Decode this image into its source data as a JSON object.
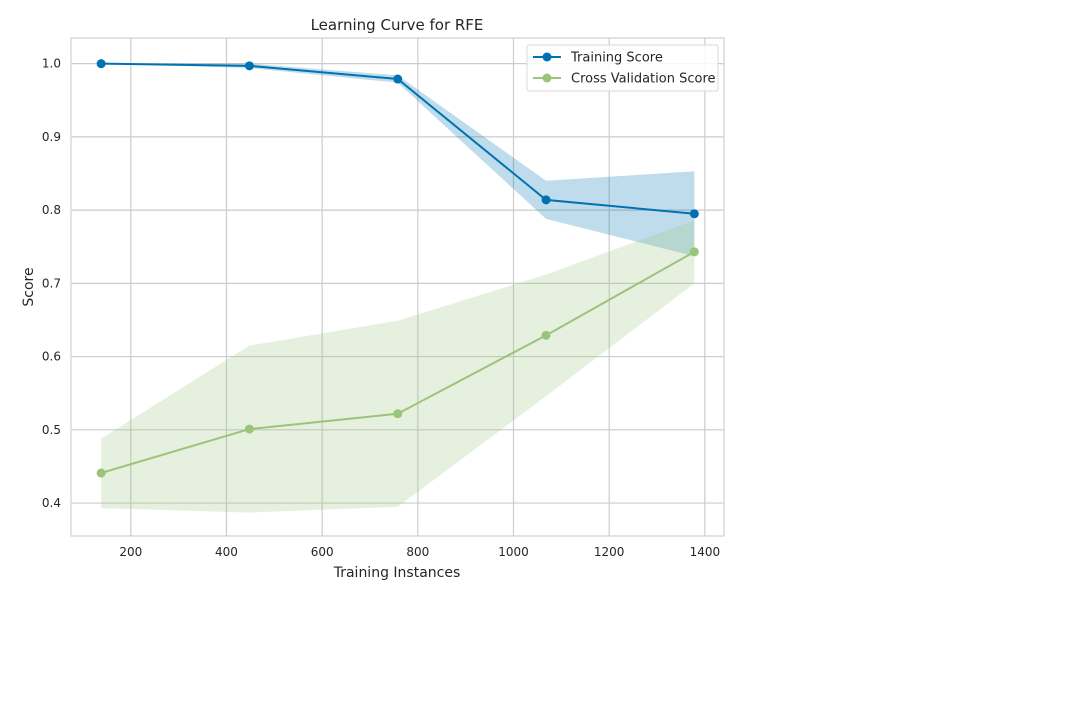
{
  "chart_data": {
    "type": "line",
    "title": "Learning Curve for RFE",
    "xlabel": "Training Instances",
    "ylabel": "Score",
    "xlim": [
      75,
      1440
    ],
    "ylim": [
      0.355,
      1.035
    ],
    "xticks": [
      200,
      400,
      600,
      800,
      1000,
      1200,
      1400
    ],
    "xtick_labels": [
      "200",
      "400",
      "600",
      "800",
      "1000",
      "1200",
      "1400"
    ],
    "yticks": [
      0.4,
      0.5,
      0.6,
      0.7,
      0.8,
      0.9,
      1.0
    ],
    "ytick_labels": [
      "0.4",
      "0.5",
      "0.6",
      "0.7",
      "0.8",
      "0.9",
      "1.0"
    ],
    "grid": true,
    "legend_position": "top-right",
    "x": [
      138,
      448,
      758,
      1068,
      1378
    ],
    "series": [
      {
        "name": "Training Score",
        "color": "#0072b2",
        "values": [
          1.0,
          0.997,
          0.979,
          0.814,
          0.795
        ],
        "band_upper": [
          1.0,
          1.0,
          0.984,
          0.84,
          0.853
        ],
        "band_lower": [
          1.0,
          0.994,
          0.974,
          0.788,
          0.737
        ]
      },
      {
        "name": "Cross Validation Score",
        "color": "#9bc47a",
        "values": [
          0.441,
          0.501,
          0.522,
          0.629,
          0.743
        ],
        "band_upper": [
          0.488,
          0.615,
          0.649,
          0.712,
          0.786
        ],
        "band_lower": [
          0.393,
          0.387,
          0.395,
          0.546,
          0.7
        ]
      }
    ]
  }
}
